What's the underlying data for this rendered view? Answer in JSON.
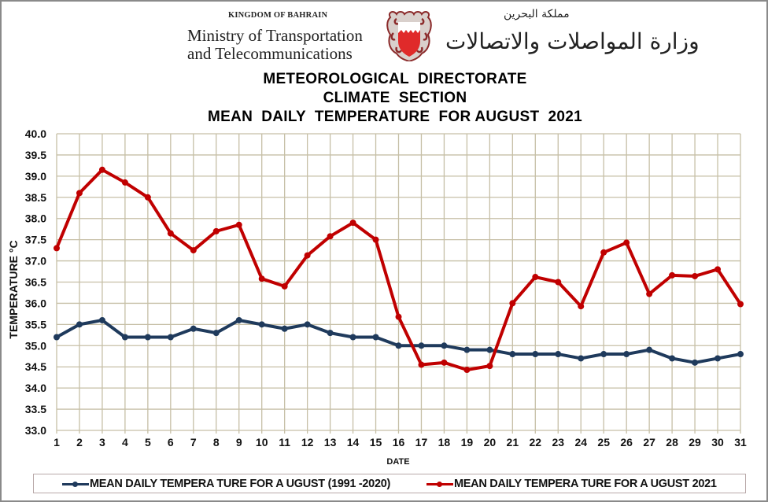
{
  "header": {
    "kingdom_en": "KINGDOM OF BAHRAIN",
    "ministry_en_line1": "Ministry of Transportation",
    "ministry_en_line2": "and Telecommunications",
    "kingdom_ar": "مملكة البحرين",
    "ministry_ar": "وزارة المواصلات والاتصالات",
    "emblem": "bahrain-coat-of-arms-icon"
  },
  "colors": {
    "baseline_series": "#1f3a5c",
    "current_series": "#c00000",
    "grid": "#c6bfa6",
    "frame": "#8a8a8a"
  },
  "chart_data": {
    "type": "line",
    "title": [
      "METEOROLOGICAL  DIRECTORATE",
      "CLIMATE  SECTION",
      "MEAN  DAILY  TEMPERATURE  FOR AUGUST  2021"
    ],
    "xlabel": "DATE",
    "ylabel": "TEMPERATURE °C",
    "ylim": [
      33.0,
      40.0
    ],
    "ytick_step": 0.5,
    "yticks": [
      "33.0",
      "33.5",
      "34.0",
      "34.5",
      "35.0",
      "35.5",
      "36.0",
      "36.5",
      "37.0",
      "37.5",
      "38.0",
      "38.5",
      "39.0",
      "39.5",
      "40.0"
    ],
    "x": [
      1,
      2,
      3,
      4,
      5,
      6,
      7,
      8,
      9,
      10,
      11,
      12,
      13,
      14,
      15,
      16,
      17,
      18,
      19,
      20,
      21,
      22,
      23,
      24,
      25,
      26,
      27,
      28,
      29,
      30,
      31
    ],
    "grid": true,
    "legend_position": "bottom",
    "series": [
      {
        "name": "MEAN DAILY TEMPERA TURE FOR A UGUST (1991 -2020)",
        "color": "#1f3a5c",
        "values": [
          35.2,
          35.5,
          35.6,
          35.2,
          35.2,
          35.2,
          35.4,
          35.3,
          35.6,
          35.5,
          35.4,
          35.5,
          35.3,
          35.2,
          35.2,
          35.0,
          35.0,
          35.0,
          34.9,
          34.9,
          34.8,
          34.8,
          34.8,
          34.7,
          34.8,
          34.8,
          34.9,
          34.7,
          34.6,
          34.7,
          34.8
        ]
      },
      {
        "name": "MEAN DAILY TEMPERA TURE FOR A UGUST 2021",
        "color": "#c00000",
        "values": [
          37.3,
          38.6,
          39.15,
          38.85,
          38.5,
          37.65,
          37.25,
          37.7,
          37.85,
          36.58,
          36.4,
          37.13,
          37.58,
          37.9,
          37.5,
          35.68,
          34.55,
          34.6,
          34.43,
          34.52,
          36.0,
          36.62,
          36.5,
          35.93,
          37.2,
          37.43,
          36.22,
          36.66,
          36.64,
          36.8,
          35.98
        ]
      }
    ]
  }
}
